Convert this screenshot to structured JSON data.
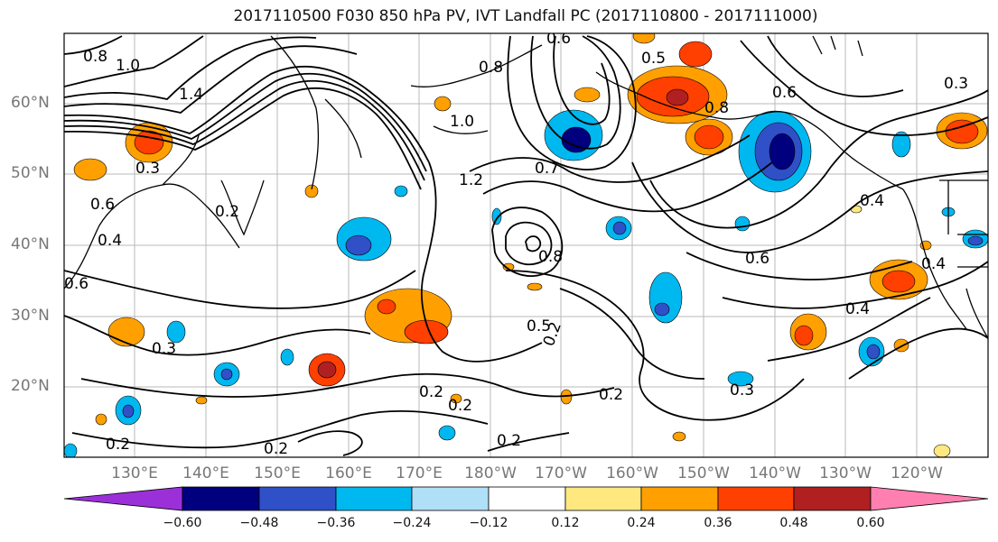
{
  "title": "2017110500 F030 850 hPa PV, IVT Landfall PC (2017110800 - 2017111000)",
  "latitude_labels": [
    "60°N",
    "50°N",
    "40°N",
    "30°N",
    "20°N"
  ],
  "longitude_labels": [
    "130°E",
    "140°E",
    "150°E",
    "160°E",
    "170°E",
    "180°W",
    "170°W",
    "160°W",
    "150°W",
    "140°W",
    "130°W",
    "120°W"
  ],
  "contour_labels": [
    "0.8",
    "1.0",
    "1.4",
    "0.6",
    "0.8",
    "0.5",
    "0.8",
    "0.6",
    "0.3",
    "1.0",
    "1.2",
    "0.7",
    "0.6",
    "0.3",
    "0.6",
    "0.4",
    "0.8",
    "0.5",
    "0.6",
    "0.3",
    "0.2",
    "0.2",
    "0.2",
    "0.2",
    "0.2",
    "0.4",
    "0.4",
    "0.3",
    "0.2",
    "0.2",
    "0.4",
    "0.2"
  ],
  "colorbar": {
    "ticks": [
      "−0.60",
      "−0.48",
      "−0.36",
      "−0.24",
      "−0.12",
      "0.12",
      "0.24",
      "0.36",
      "0.48",
      "0.60"
    ],
    "colors": [
      "#9b30d9",
      "#00007f",
      "#3050c8",
      "#00b8f0",
      "#b0e0f8",
      "#ffffff",
      "#ffe880",
      "#ffa000",
      "#ff4000",
      "#b02020",
      "#ff80b0"
    ]
  }
}
